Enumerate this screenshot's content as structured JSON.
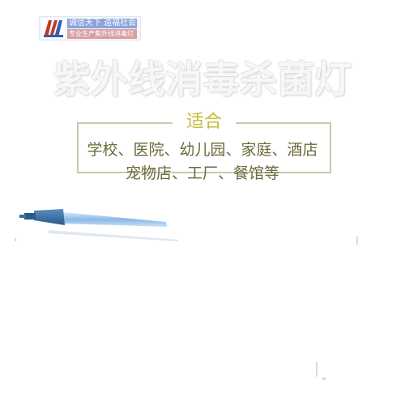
{
  "logo": {
    "line1": "诚信天下 造福社会",
    "line2": "专业生产紫外线消毒灯"
  },
  "title": "紫外线消毒杀菌灯",
  "suitable": {
    "heading": "适合",
    "line1": "学校、医院、幼儿园、家庭、酒店",
    "line2": "宠物店、工厂、餐馆等"
  },
  "colors": {
    "frame": "#c9c7ad",
    "heading": "#c4bb3a",
    "body_text": "#6b6a3a",
    "lamp_tube": "#8ab8e6"
  }
}
